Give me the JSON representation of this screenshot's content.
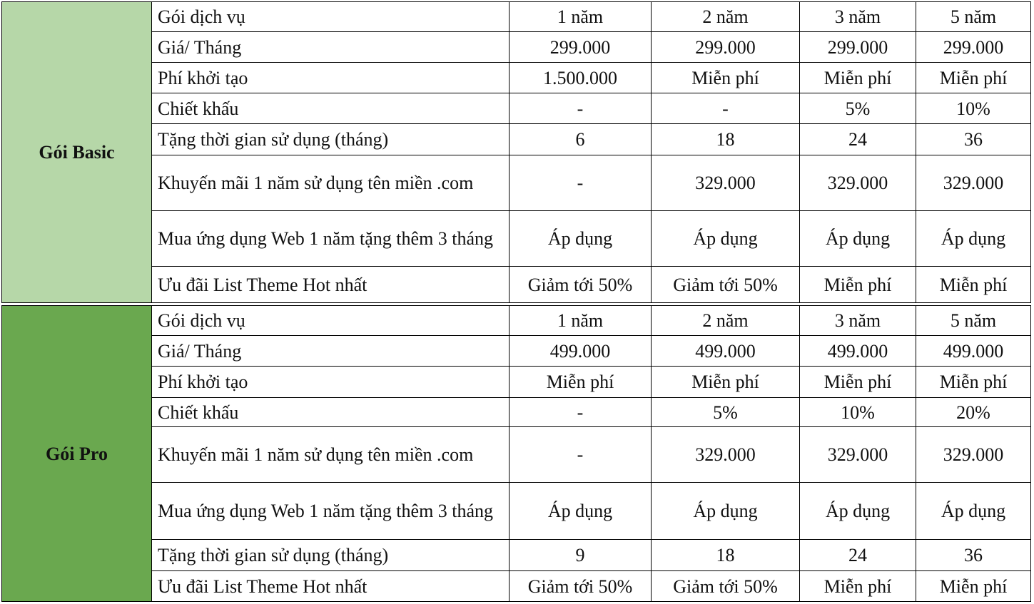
{
  "colors": {
    "basic": "#b6d7a8",
    "pro": "#6aa84f"
  },
  "packages": [
    {
      "id": "basic",
      "name": "Gói Basic",
      "rows": [
        [
          "Gói dịch vụ",
          "1 năm",
          "2 năm",
          "3 năm",
          "5 năm"
        ],
        [
          "Giá/ Tháng",
          "299.000",
          "299.000",
          "299.000",
          "299.000"
        ],
        [
          "Phí khởi tạo",
          "1.500.000",
          "Miễn phí",
          "Miễn phí",
          "Miễn phí"
        ],
        [
          "Chiết khấu",
          "-",
          "-",
          "5%",
          "10%"
        ],
        [
          "Tặng thời gian sử dụng (tháng)",
          "6",
          "18",
          "24",
          "36"
        ],
        [
          "Khuyến mãi 1 năm sử dụng tên miền .com",
          "-",
          "329.000",
          "329.000",
          "329.000"
        ],
        [
          "Mua ứng dụng Web 1 năm tặng thêm 3 tháng",
          "Áp dụng",
          "Áp dụng",
          "Áp dụng",
          "Áp dụng"
        ],
        [
          "Ưu đãi List Theme Hot nhất",
          "Giảm tới 50%",
          "Giảm tới 50%",
          "Miễn phí",
          "Miễn phí"
        ]
      ]
    },
    {
      "id": "pro",
      "name": "Gói Pro",
      "rows": [
        [
          "Gói dịch vụ",
          "1 năm",
          "2 năm",
          "3 năm",
          "5 năm"
        ],
        [
          "Giá/ Tháng",
          "499.000",
          "499.000",
          "499.000",
          "499.000"
        ],
        [
          "Phí khởi tạo",
          "Miễn phí",
          "Miễn phí",
          "Miễn phí",
          "Miễn phí"
        ],
        [
          "Chiết khấu",
          "-",
          "5%",
          "10%",
          "20%"
        ],
        [
          "Khuyến mãi 1 năm sử dụng tên miền .com",
          "-",
          "329.000",
          "329.000",
          "329.000"
        ],
        [
          "Mua ứng dụng Web 1 năm tặng thêm 3 tháng",
          "Áp dụng",
          "Áp dụng",
          "Áp dụng",
          "Áp dụng"
        ],
        [
          "Tặng thời gian sử dụng (tháng)",
          "9",
          "18",
          "24",
          "36"
        ],
        [
          "Ưu đãi List Theme Hot nhất",
          "Giảm tới 50%",
          "Giảm tới 50%",
          "Miễn phí",
          "Miễn phí"
        ]
      ]
    }
  ]
}
